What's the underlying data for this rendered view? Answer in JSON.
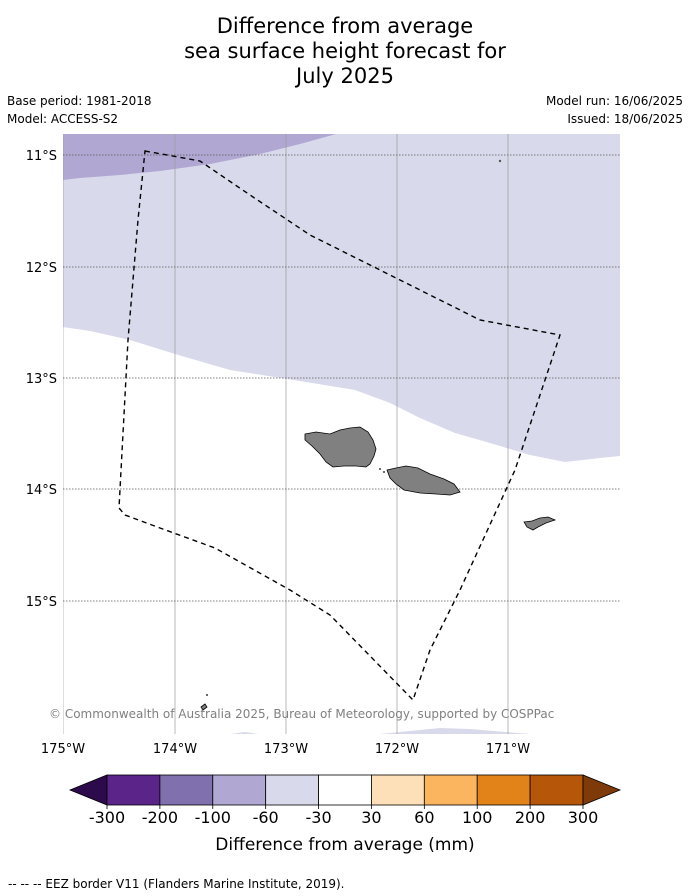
{
  "title": {
    "line1": "Difference from average",
    "line2": "sea surface height forecast for",
    "line3": "July 2025"
  },
  "meta": {
    "base_period": "Base period: 1981-2018",
    "model": "Model: ACCESS-S2",
    "model_run": "Model run: 16/06/2025",
    "issued": "Issued: 18/06/2025"
  },
  "map": {
    "lat_labels": [
      "11°S",
      "12°S",
      "13°S",
      "14°S",
      "15°S"
    ],
    "lon_labels": [
      "175°W",
      "174°W",
      "173°W",
      "172°W",
      "171°W"
    ],
    "copyright": "© Commonwealth of Australia 2025, Bureau of Meteorology, supported by COSPPac"
  },
  "colorbar": {
    "tick_labels": [
      "-300",
      "-200",
      "-100",
      "-60",
      "-30",
      "30",
      "60",
      "100",
      "200",
      "300"
    ],
    "title": "Difference from average (mm)",
    "colors": {
      "under": "#2d0a4b",
      "bins": [
        "#5a2489",
        "#8070ad",
        "#b0a8d2",
        "#d8d9ea",
        "#ffffff",
        "#fde0b8",
        "#fbb55e",
        "#e18318",
        "#b55608"
      ],
      "over": "#7f3a0a"
    }
  },
  "legend": {
    "eez": "--  --  -- EEZ border V11 (Flanders Marine Institute, 2019)."
  }
}
